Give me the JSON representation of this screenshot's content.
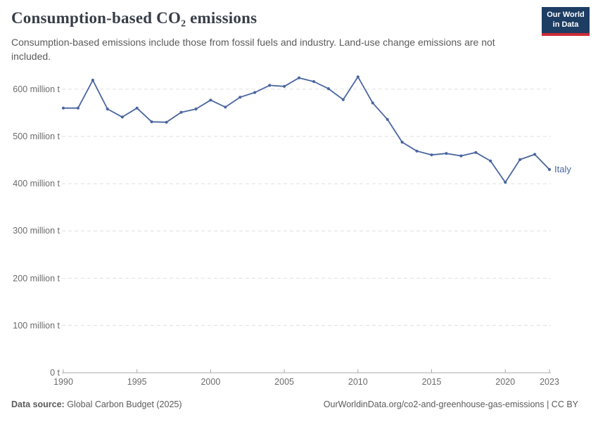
{
  "header": {
    "title": "Consumption-based CO₂ emissions",
    "subtitle": "Consumption-based emissions include those from fossil fuels and industry. Land-use change emissions are not included."
  },
  "logo": {
    "line1": "Our World",
    "line2": "in Data",
    "bg_color": "#1d3d63",
    "accent_color": "#cc2936"
  },
  "footer": {
    "source_label": "Data source:",
    "source_value": "Global Carbon Budget (2025)",
    "credit": "OurWorldinData.org/co2-and-greenhouse-gas-emissions | CC BY"
  },
  "colors": {
    "line": "#4a66a0",
    "grid": "#dfdfdf",
    "axis": "#a8a8a8",
    "tick_label": "#6b6b6b",
    "title": "#383e48",
    "subtitle": "#5b5b5b"
  },
  "chart_data": {
    "type": "line",
    "title": "Consumption-based CO₂ emissions",
    "unit": "million t",
    "grid": "horizontal dashed",
    "legend_position": "end-of-line label",
    "x": [
      1990,
      1991,
      1992,
      1993,
      1994,
      1995,
      1996,
      1997,
      1998,
      1999,
      2000,
      2001,
      2002,
      2003,
      2004,
      2005,
      2006,
      2007,
      2008,
      2009,
      2010,
      2011,
      2012,
      2013,
      2014,
      2015,
      2016,
      2017,
      2018,
      2019,
      2020,
      2021,
      2022,
      2023
    ],
    "series": [
      {
        "name": "Italy",
        "color": "#4a66a0",
        "values": [
          560,
          560,
          619,
          558,
          541,
          560,
          531,
          530,
          551,
          558,
          577,
          562,
          583,
          593,
          608,
          606,
          624,
          616,
          601,
          578,
          626,
          571,
          536,
          488,
          469,
          461,
          464,
          459,
          466,
          448,
          403,
          451,
          462,
          430
        ]
      }
    ],
    "ylim": [
      0,
      650
    ],
    "xlabel": "",
    "ylabel": "",
    "yticks": [
      {
        "value": 0,
        "label": "0 t"
      },
      {
        "value": 100,
        "label": "100 million t"
      },
      {
        "value": 200,
        "label": "200 million t"
      },
      {
        "value": 300,
        "label": "300 million t"
      },
      {
        "value": 400,
        "label": "400 million t"
      },
      {
        "value": 500,
        "label": "500 million t"
      },
      {
        "value": 600,
        "label": "600 million t"
      }
    ],
    "xticks": [
      1990,
      1995,
      2000,
      2005,
      2010,
      2015,
      2020,
      2023
    ]
  }
}
